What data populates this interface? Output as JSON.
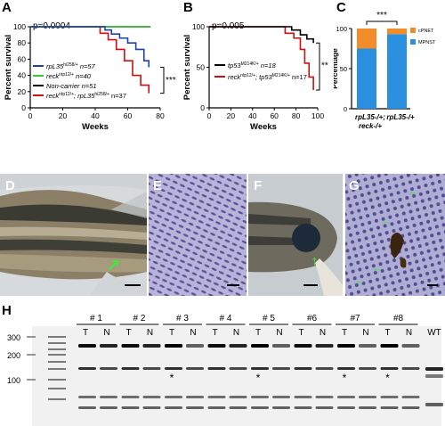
{
  "panels": {
    "A": "A",
    "B": "B",
    "C": "C",
    "D": "D",
    "E": "E",
    "F": "F",
    "G": "G",
    "H": "H"
  },
  "gel": {
    "lanes": [
      {
        "label": "# 1",
        "sub": [
          "T",
          "N"
        ]
      },
      {
        "label": "# 2",
        "sub": [
          "T",
          "N"
        ]
      },
      {
        "label": "# 3",
        "sub": [
          "T",
          "N"
        ]
      },
      {
        "label": "# 4",
        "sub": [
          "T",
          "N"
        ]
      },
      {
        "label": "# 5",
        "sub": [
          "T",
          "N"
        ]
      },
      {
        "label": "#6",
        "sub": [
          "T",
          "N"
        ]
      },
      {
        "label": "#7",
        "sub": [
          "T",
          "N"
        ]
      },
      {
        "label": "#8",
        "sub": [
          "T",
          "N"
        ]
      }
    ],
    "wt_label": "WT",
    "ladder": [
      "300",
      "200",
      "100"
    ],
    "asterisk": "*",
    "star_lanes": [
      3,
      5,
      7,
      8
    ]
  },
  "colors": {
    "blue": "#1f3fb4",
    "green": "#33cc33",
    "black": "#000000",
    "red": "#cc1111",
    "orange": "#f28c28",
    "lightblue": "#2b8fe0"
  },
  "chart_data": [
    {
      "type": "line",
      "panel": "A",
      "pvalue": "p=0.0004",
      "xlabel": "Weeks",
      "ylabel": "Percent survival",
      "xlim": [
        0,
        80
      ],
      "ylim": [
        0,
        100
      ],
      "xticks": [
        0,
        20,
        40,
        60,
        80
      ],
      "yticks": [
        0,
        20,
        40,
        60,
        80,
        100
      ],
      "significance": "***",
      "series": [
        {
          "legend": [
            "rpL35",
            "hi258/+",
            " n=57"
          ],
          "color": "#1f3fb4",
          "x": [
            0,
            40,
            46,
            50,
            55,
            60,
            65,
            70,
            73
          ],
          "y": [
            100,
            100,
            96,
            91,
            86,
            80,
            72,
            58,
            50
          ]
        },
        {
          "legend": [
            "reck",
            "ntp12/+",
            " n=40"
          ],
          "color": "#33cc33",
          "x": [
            0,
            74
          ],
          "y": [
            100,
            100
          ]
        },
        {
          "legend": [
            "Non-carrier n=51",
            "",
            ""
          ],
          "color": "#000000",
          "x": [
            0,
            74
          ],
          "y": [
            100,
            100
          ]
        },
        {
          "legend": [
            "reck",
            "ntp12/+",
            "; rpL35",
            "hi258/+",
            " n=37"
          ],
          "color": "#cc1111",
          "x": [
            0,
            38,
            43,
            48,
            53,
            58,
            63,
            68,
            73
          ],
          "y": [
            100,
            100,
            92,
            84,
            72,
            58,
            40,
            28,
            18
          ]
        }
      ]
    },
    {
      "type": "line",
      "panel": "B",
      "pvalue": "p=0.005",
      "xlabel": "Weeks",
      "ylabel": "Percent survival",
      "xlim": [
        0,
        100
      ],
      "ylim": [
        0,
        100
      ],
      "xticks": [
        0,
        20,
        40,
        60,
        80,
        100
      ],
      "yticks": [
        0,
        50,
        100
      ],
      "significance": "**",
      "series": [
        {
          "legend": [
            "tp53",
            "M214K/+",
            " n=18"
          ],
          "color": "#000000",
          "x": [
            0,
            68,
            76,
            84,
            90,
            96
          ],
          "y": [
            100,
            100,
            96,
            90,
            85,
            80
          ]
        },
        {
          "legend": [
            "reck",
            "ntp12/+",
            "; tp53",
            "M214K/+",
            " n=17"
          ],
          "color": "#cc1111",
          "x": [
            0,
            62,
            70,
            78,
            84,
            88,
            92,
            96
          ],
          "y": [
            100,
            100,
            92,
            86,
            72,
            55,
            38,
            22
          ]
        }
      ]
    },
    {
      "type": "bar",
      "panel": "C",
      "ylabel": "Percentage",
      "categories": [
        "rpL35-/+;\nreck-/+",
        "rpL35-/+"
      ],
      "stacked": true,
      "ylim": [
        0,
        100
      ],
      "yticks": [
        0,
        50,
        100
      ],
      "significance": "***",
      "series": [
        {
          "name": "MPNST",
          "color": "#2b8fe0",
          "values": [
            75,
            93
          ]
        },
        {
          "name": "cPNET",
          "color": "#f28c28",
          "values": [
            25,
            7
          ]
        }
      ]
    }
  ]
}
